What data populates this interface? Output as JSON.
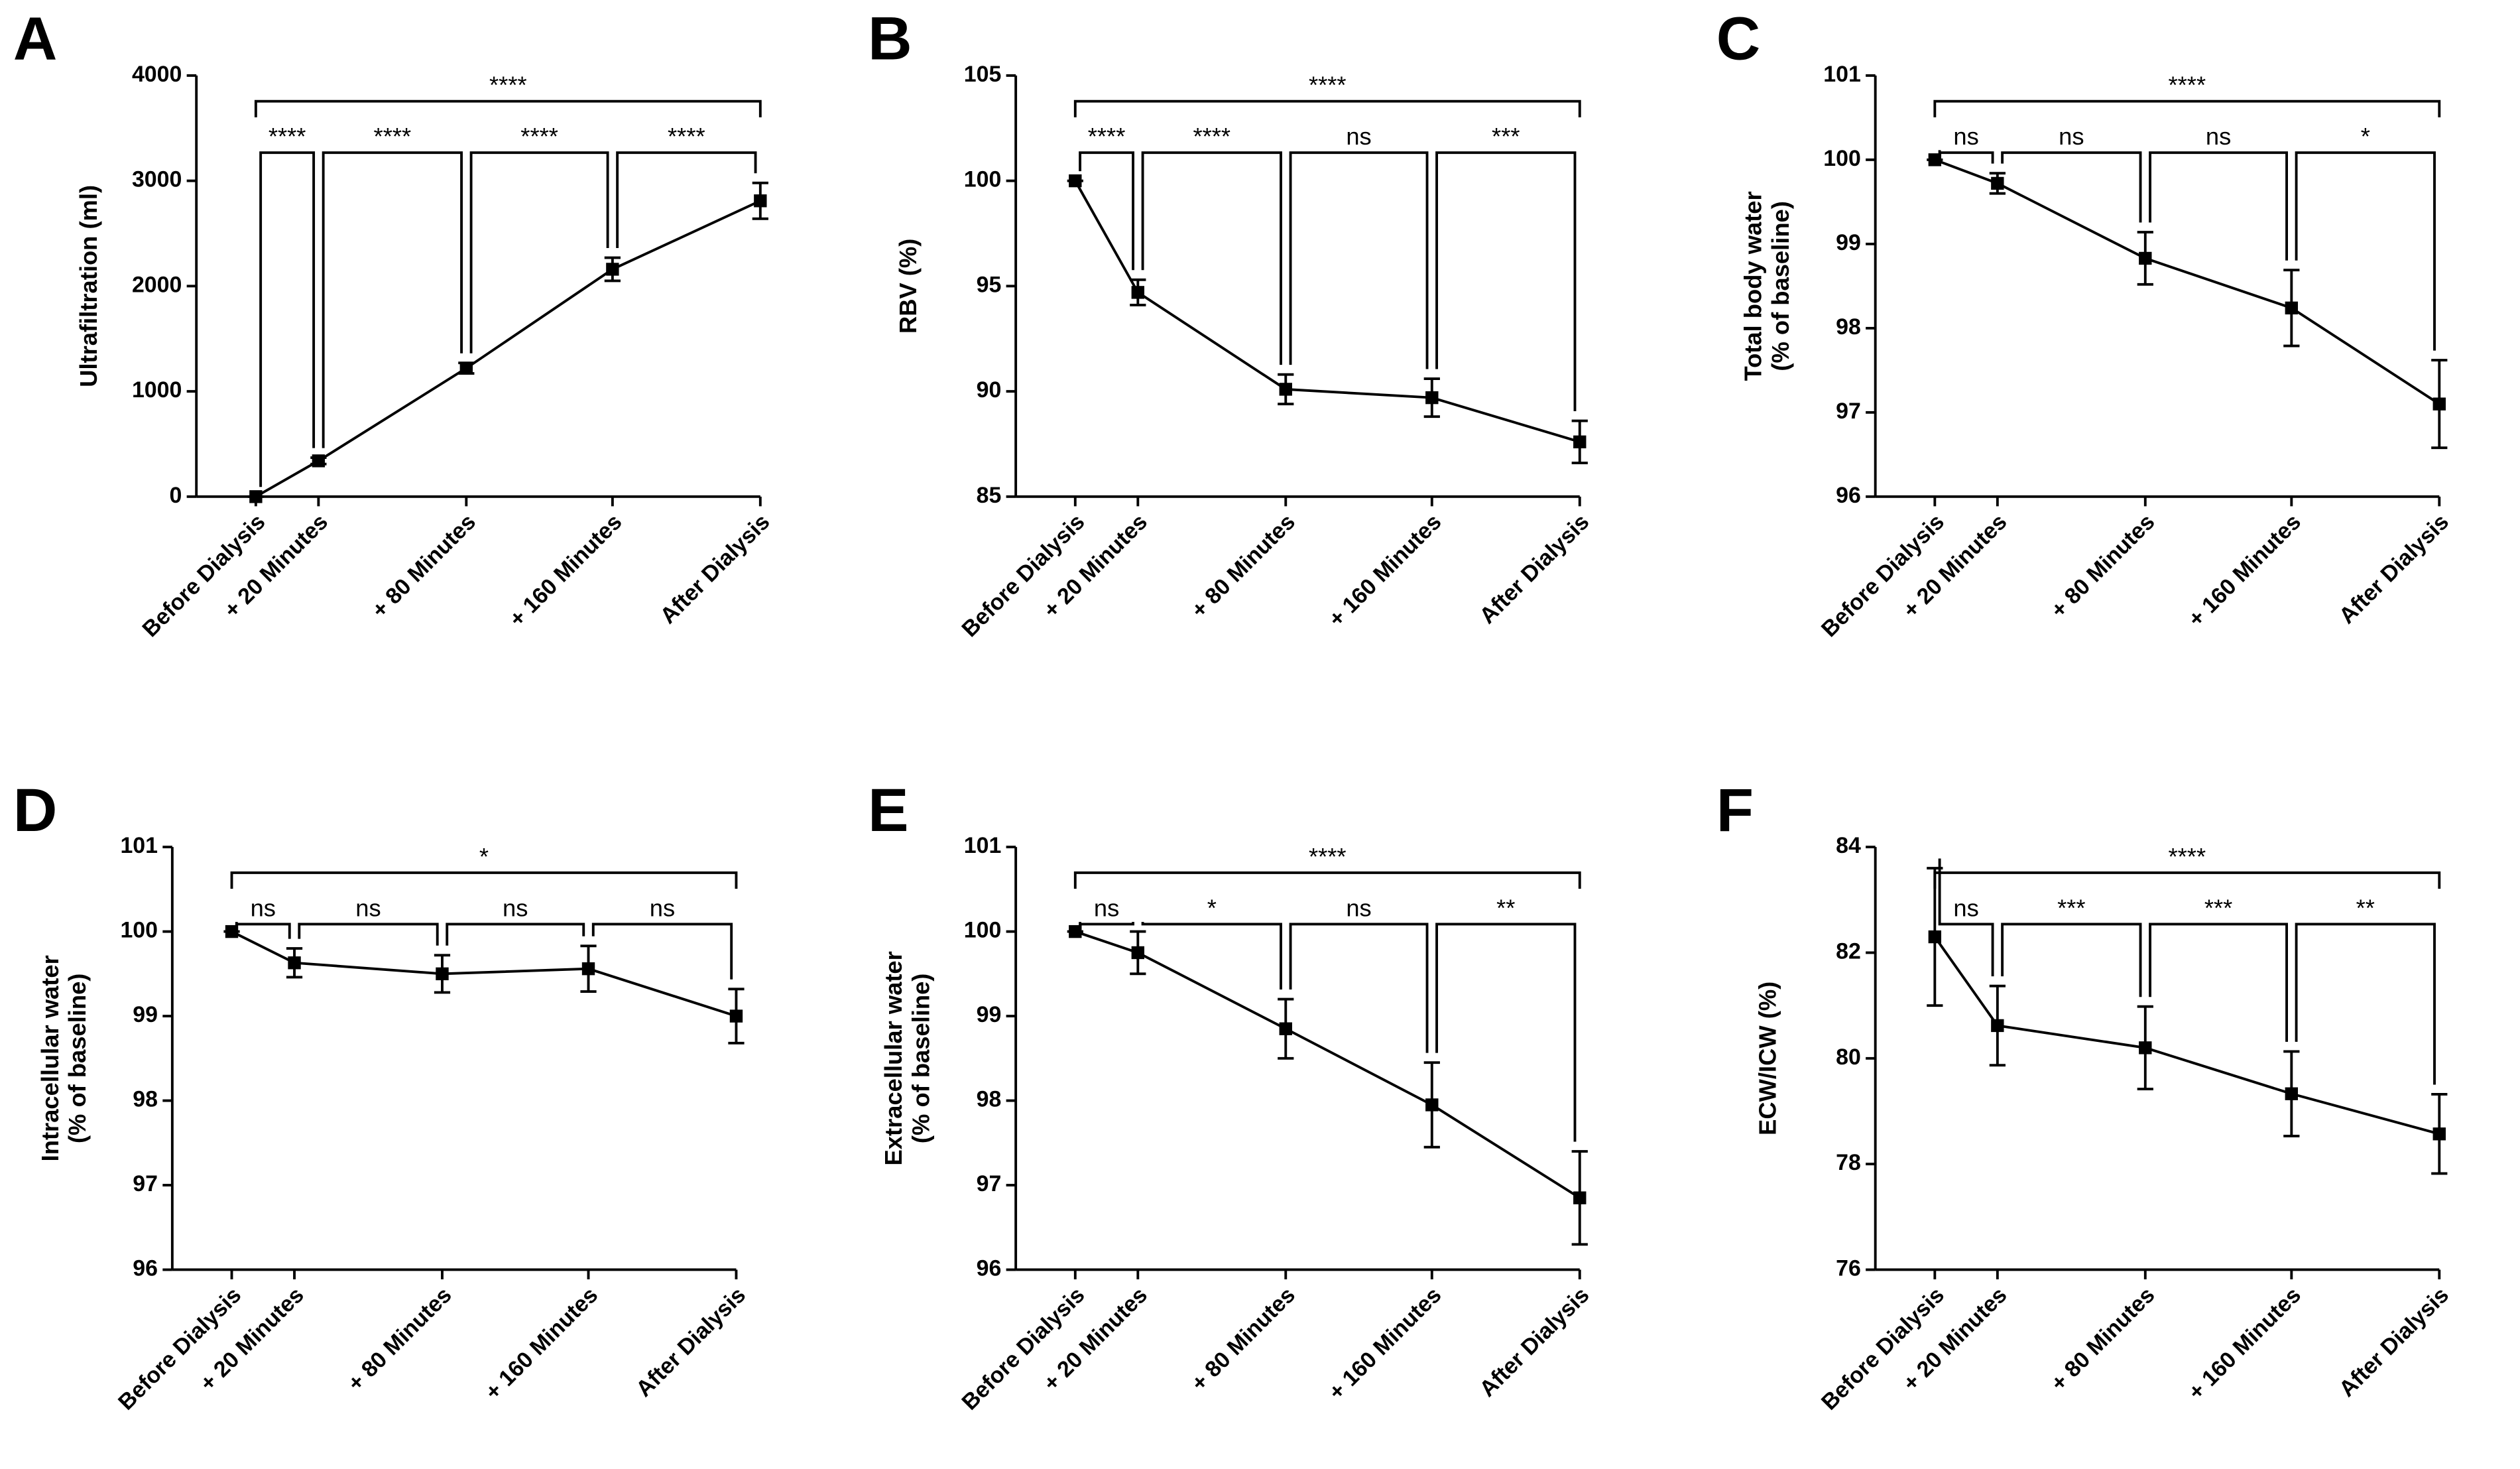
{
  "chart_data": [
    {
      "type": "line",
      "panel": "A",
      "y_label": [
        "Ultrafiltration (ml)"
      ],
      "categories": [
        "Before Dialysis",
        "+ 20 Minutes",
        "+ 80 Minutes",
        "+ 160 Minutes",
        "After Dialysis"
      ],
      "series": [
        {
          "color": "#000000",
          "values": [
            0,
            340,
            1220,
            2160,
            2810
          ],
          "errors": [
            0,
            30,
            50,
            110,
            170
          ]
        }
      ],
      "ylim": [
        0,
        4000
      ],
      "yticks": [
        0,
        1000,
        2000,
        3000,
        4000
      ],
      "pair_labels": [
        "****",
        "****",
        "****",
        "****"
      ],
      "overall_label": "****"
    },
    {
      "type": "line",
      "panel": "B",
      "y_label": [
        "RBV (%)"
      ],
      "categories": [
        "Before Dialysis",
        "+ 20 Minutes",
        "+ 80 Minutes",
        "+ 160 Minutes",
        "After Dialysis"
      ],
      "series": [
        {
          "color": "#000000",
          "values": [
            100,
            94.7,
            90.1,
            89.7,
            87.6
          ],
          "errors": [
            0,
            0.6,
            0.7,
            0.9,
            1.0
          ]
        }
      ],
      "ylim": [
        85,
        105
      ],
      "yticks": [
        85,
        90,
        95,
        100,
        105
      ],
      "pair_labels": [
        "****",
        "****",
        "ns",
        "***"
      ],
      "overall_label": "****"
    },
    {
      "type": "line",
      "panel": "C",
      "y_label": [
        "Total body water",
        "(% of baseline)"
      ],
      "categories": [
        "Before Dialysis",
        "+ 20 Minutes",
        "+ 80 Minutes",
        "+ 160 Minutes",
        "After Dialysis"
      ],
      "series": [
        {
          "color": "#000000",
          "values": [
            100,
            99.72,
            98.83,
            98.24,
            97.1
          ],
          "errors": [
            0,
            0.12,
            0.31,
            0.45,
            0.52
          ]
        }
      ],
      "ylim": [
        96,
        101
      ],
      "yticks": [
        96,
        97,
        98,
        99,
        100,
        101
      ],
      "pair_labels": [
        "ns",
        "ns",
        "ns",
        "*"
      ],
      "overall_label": "****"
    },
    {
      "type": "line",
      "panel": "D",
      "y_label": [
        "Intracellular water",
        "(% of baseline)"
      ],
      "categories": [
        "Before Dialysis",
        "+ 20 Minutes",
        "+ 80 Minutes",
        "+ 160 Minutes",
        "After Dialysis"
      ],
      "series": [
        {
          "color": "#000000",
          "values": [
            100,
            99.63,
            99.5,
            99.56,
            99.0
          ],
          "errors": [
            0,
            0.17,
            0.22,
            0.27,
            0.32
          ]
        }
      ],
      "ylim": [
        96,
        101
      ],
      "yticks": [
        96,
        97,
        98,
        99,
        100,
        101
      ],
      "pair_labels": [
        "ns",
        "ns",
        "ns",
        "ns"
      ],
      "overall_label": "*"
    },
    {
      "type": "line",
      "panel": "E",
      "y_label": [
        "Extracellular water",
        "(% of baseline)"
      ],
      "categories": [
        "Before Dialysis",
        "+ 20 Minutes",
        "+ 80 Minutes",
        "+ 160 Minutes",
        "After Dialysis"
      ],
      "series": [
        {
          "color": "#000000",
          "values": [
            100,
            99.75,
            98.85,
            97.95,
            96.85
          ],
          "errors": [
            0,
            0.25,
            0.35,
            0.5,
            0.55
          ]
        }
      ],
      "ylim": [
        96,
        101
      ],
      "yticks": [
        96,
        97,
        98,
        99,
        100,
        101
      ],
      "pair_labels": [
        "ns",
        "*",
        "ns",
        "**"
      ],
      "overall_label": "****"
    },
    {
      "type": "line",
      "panel": "F",
      "y_label": [
        "ECW/ICW (%)"
      ],
      "categories": [
        "Before Dialysis",
        "+ 20 Minutes",
        "+ 80 Minutes",
        "+ 160 Minutes",
        "After Dialysis"
      ],
      "series": [
        {
          "color": "#000000",
          "values": [
            82.3,
            80.62,
            80.2,
            79.33,
            78.57
          ],
          "errors": [
            1.3,
            0.75,
            0.78,
            0.8,
            0.75
          ]
        }
      ],
      "ylim": [
        76,
        84
      ],
      "yticks": [
        76,
        78,
        80,
        82,
        84
      ],
      "pair_labels": [
        "ns",
        "***",
        "***",
        "**"
      ],
      "overall_label": "****"
    }
  ]
}
